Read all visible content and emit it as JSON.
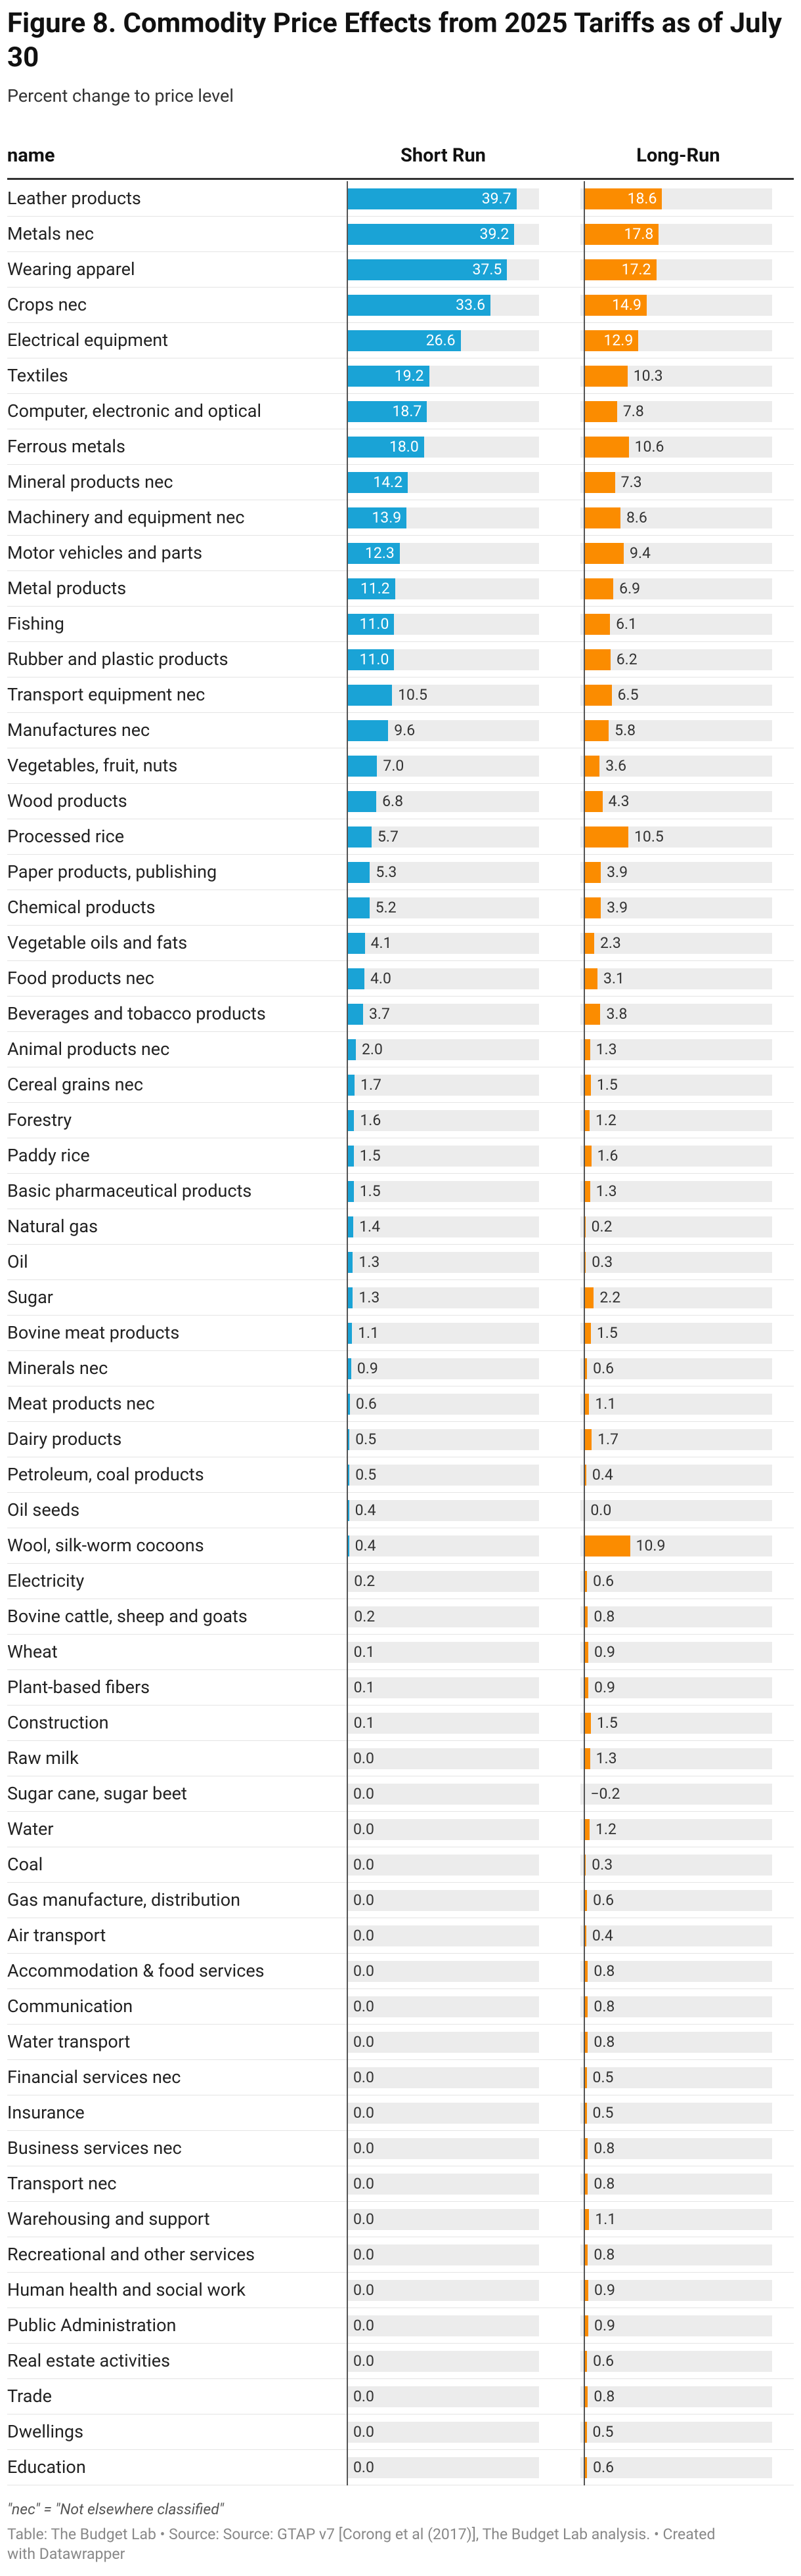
{
  "title": "Figure 8. Commodity Price Effects from 2025 Tariffs as of July 30",
  "subtitle": "Percent change to price level",
  "footer": {
    "note": "\"nec\" = \"Not elsewhere classified\"",
    "source": "Table: The Budget Lab • Source: Source: GTAP v7 [Corong et al (2017)], The Budget Lab analysis. • Created with Datawrapper"
  },
  "colors": {
    "short_run": "#1aa3d6",
    "long_run": "#fb8c00",
    "track": "#ececec"
  },
  "chart_data": {
    "type": "table",
    "name_header": "name",
    "series": [
      {
        "key": "sr",
        "name": "Short Run",
        "range": [
          0,
          45
        ]
      },
      {
        "key": "lr",
        "name": "Long-Run",
        "range": [
          -1,
          45
        ]
      }
    ],
    "rows": [
      {
        "name": "Leather products",
        "sr": "39.7",
        "lr": "18.6"
      },
      {
        "name": "Metals nec",
        "sr": "39.2",
        "lr": "17.8"
      },
      {
        "name": "Wearing apparel",
        "sr": "37.5",
        "lr": "17.2"
      },
      {
        "name": "Crops nec",
        "sr": "33.6",
        "lr": "14.9"
      },
      {
        "name": "Electrical equipment",
        "sr": "26.6",
        "lr": "12.9"
      },
      {
        "name": "Textiles",
        "sr": "19.2",
        "lr": "10.3"
      },
      {
        "name": "Computer, electronic and optical",
        "sr": "18.7",
        "lr": "7.8"
      },
      {
        "name": "Ferrous metals",
        "sr": "18.0",
        "lr": "10.6"
      },
      {
        "name": "Mineral products nec",
        "sr": "14.2",
        "lr": "7.3"
      },
      {
        "name": "Machinery and equipment nec",
        "sr": "13.9",
        "lr": "8.6"
      },
      {
        "name": "Motor vehicles and parts",
        "sr": "12.3",
        "lr": "9.4"
      },
      {
        "name": "Metal products",
        "sr": "11.2",
        "lr": "6.9"
      },
      {
        "name": "Fishing",
        "sr": "11.0",
        "lr": "6.1"
      },
      {
        "name": "Rubber and plastic products",
        "sr": "11.0",
        "lr": "6.2"
      },
      {
        "name": "Transport equipment nec",
        "sr": "10.5",
        "lr": "6.5"
      },
      {
        "name": "Manufactures nec",
        "sr": "9.6",
        "lr": "5.8"
      },
      {
        "name": "Vegetables, fruit, nuts",
        "sr": "7.0",
        "lr": "3.6"
      },
      {
        "name": "Wood products",
        "sr": "6.8",
        "lr": "4.3"
      },
      {
        "name": "Processed rice",
        "sr": "5.7",
        "lr": "10.5"
      },
      {
        "name": "Paper products, publishing",
        "sr": "5.3",
        "lr": "3.9"
      },
      {
        "name": "Chemical products",
        "sr": "5.2",
        "lr": "3.9"
      },
      {
        "name": "Vegetable oils and fats",
        "sr": "4.1",
        "lr": "2.3"
      },
      {
        "name": "Food products nec",
        "sr": "4.0",
        "lr": "3.1"
      },
      {
        "name": "Beverages and tobacco products",
        "sr": "3.7",
        "lr": "3.8"
      },
      {
        "name": "Animal products nec",
        "sr": "2.0",
        "lr": "1.3"
      },
      {
        "name": "Cereal grains nec",
        "sr": "1.7",
        "lr": "1.5"
      },
      {
        "name": "Forestry",
        "sr": "1.6",
        "lr": "1.2"
      },
      {
        "name": "Paddy rice",
        "sr": "1.5",
        "lr": "1.6"
      },
      {
        "name": "Basic pharmaceutical products",
        "sr": "1.5",
        "lr": "1.3"
      },
      {
        "name": "Natural gas",
        "sr": "1.4",
        "lr": "0.2"
      },
      {
        "name": "Oil",
        "sr": "1.3",
        "lr": "0.3"
      },
      {
        "name": "Sugar",
        "sr": "1.3",
        "lr": "2.2"
      },
      {
        "name": "Bovine meat products",
        "sr": "1.1",
        "lr": "1.5"
      },
      {
        "name": "Minerals nec",
        "sr": "0.9",
        "lr": "0.6"
      },
      {
        "name": "Meat products nec",
        "sr": "0.6",
        "lr": "1.1"
      },
      {
        "name": "Dairy products",
        "sr": "0.5",
        "lr": "1.7"
      },
      {
        "name": "Petroleum, coal products",
        "sr": "0.5",
        "lr": "0.4"
      },
      {
        "name": "Oil seeds",
        "sr": "0.4",
        "lr": "0.0"
      },
      {
        "name": "Wool, silk-worm cocoons",
        "sr": "0.4",
        "lr": "10.9"
      },
      {
        "name": "Electricity",
        "sr": "0.2",
        "lr": "0.6"
      },
      {
        "name": "Bovine cattle, sheep and goats",
        "sr": "0.2",
        "lr": "0.8"
      },
      {
        "name": "Wheat",
        "sr": "0.1",
        "lr": "0.9"
      },
      {
        "name": "Plant-based fibers",
        "sr": "0.1",
        "lr": "0.9"
      },
      {
        "name": "Construction",
        "sr": "0.1",
        "lr": "1.5"
      },
      {
        "name": "Raw milk",
        "sr": "0.0",
        "lr": "1.3"
      },
      {
        "name": "Sugar cane, sugar beet",
        "sr": "0.0",
        "lr": "−0.2"
      },
      {
        "name": "Water",
        "sr": "0.0",
        "lr": "1.2"
      },
      {
        "name": "Coal",
        "sr": "0.0",
        "lr": "0.3"
      },
      {
        "name": "Gas manufacture, distribution",
        "sr": "0.0",
        "lr": "0.6"
      },
      {
        "name": "Air transport",
        "sr": "0.0",
        "lr": "0.4"
      },
      {
        "name": "Accommodation & food services",
        "sr": "0.0",
        "lr": "0.8"
      },
      {
        "name": "Communication",
        "sr": "0.0",
        "lr": "0.8"
      },
      {
        "name": "Water transport",
        "sr": "0.0",
        "lr": "0.8"
      },
      {
        "name": "Financial services nec",
        "sr": "0.0",
        "lr": "0.5"
      },
      {
        "name": "Insurance",
        "sr": "0.0",
        "lr": "0.5"
      },
      {
        "name": "Business services nec",
        "sr": "0.0",
        "lr": "0.8"
      },
      {
        "name": "Transport nec",
        "sr": "0.0",
        "lr": "0.8"
      },
      {
        "name": "Warehousing and support",
        "sr": "0.0",
        "lr": "1.1"
      },
      {
        "name": "Recreational and other services",
        "sr": "0.0",
        "lr": "0.8"
      },
      {
        "name": "Human health and social work",
        "sr": "0.0",
        "lr": "0.9"
      },
      {
        "name": "Public Administration",
        "sr": "0.0",
        "lr": "0.9"
      },
      {
        "name": "Real estate activities",
        "sr": "0.0",
        "lr": "0.6"
      },
      {
        "name": "Trade",
        "sr": "0.0",
        "lr": "0.8"
      },
      {
        "name": "Dwellings",
        "sr": "0.0",
        "lr": "0.5"
      },
      {
        "name": "Education",
        "sr": "0.0",
        "lr": "0.6"
      }
    ]
  }
}
